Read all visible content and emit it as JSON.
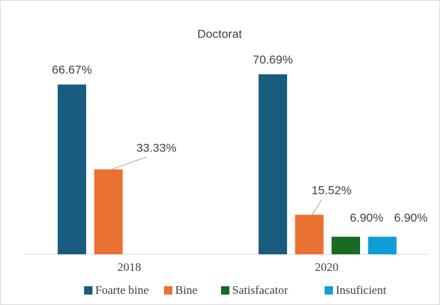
{
  "chart_data": {
    "type": "bar",
    "title": "Doctorat",
    "categories": [
      "2018",
      "2020"
    ],
    "series": [
      {
        "name": "Foarte bine",
        "color": "#1a5c80",
        "values": [
          66.67,
          70.69
        ],
        "value_labels": [
          "66.67%",
          "70.69%"
        ]
      },
      {
        "name": "Bine",
        "color": "#e97132",
        "values": [
          33.33,
          15.52
        ],
        "value_labels": [
          "33.33%",
          "15.52%"
        ]
      },
      {
        "name": "Satisfacator",
        "color": "#196b24",
        "values": [
          null,
          6.9
        ],
        "value_labels": [
          null,
          "6.90%"
        ]
      },
      {
        "name": "Insuficient",
        "color": "#0f9ed5",
        "values": [
          null,
          6.9
        ],
        "value_labels": [
          null,
          "6.90%"
        ]
      }
    ]
  }
}
